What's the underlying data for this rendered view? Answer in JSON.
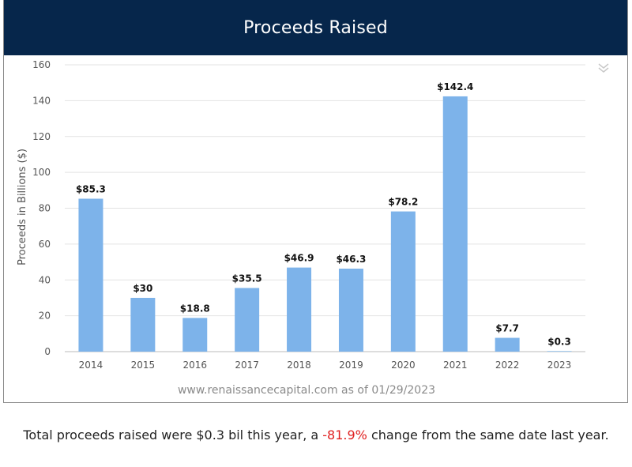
{
  "header": {
    "title": "Proceeds Raised"
  },
  "footer": {
    "text_before": "Total proceeds raised were $0.3 bil this year, a ",
    "change": "-81.9%",
    "text_after": " change from the same date last year."
  },
  "colors": {
    "header_bg": "#06264b",
    "bar": "#7db3ea",
    "change_negative": "#e02020"
  },
  "icons": {
    "collapse": "double-chevron-down-icon"
  },
  "chart_data": {
    "type": "bar",
    "categories": [
      "2014",
      "2015",
      "2016",
      "2017",
      "2018",
      "2019",
      "2020",
      "2021",
      "2022",
      "2023"
    ],
    "values": [
      85.3,
      30,
      18.8,
      35.5,
      46.9,
      46.3,
      78.2,
      142.4,
      7.7,
      0.3
    ],
    "data_labels": [
      "$85.3",
      "$30",
      "$18.8",
      "$35.5",
      "$46.9",
      "$46.3",
      "$78.2",
      "$142.4",
      "$7.7",
      "$0.3"
    ],
    "ylabel": "Proceeds in Billions ($)",
    "xlabel": "",
    "ylim": [
      0,
      160
    ],
    "yticks": [
      0,
      20,
      40,
      60,
      80,
      100,
      120,
      140,
      160
    ],
    "grid": true,
    "credit": "www.renaissancecapital.com as of 01/29/2023"
  }
}
